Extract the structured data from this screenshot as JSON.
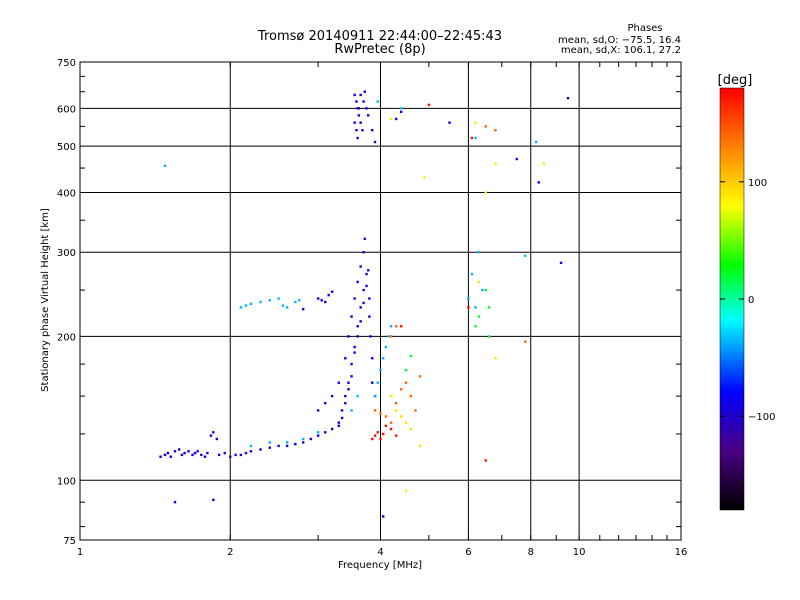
{
  "chart_data": {
    "type": "scatter",
    "title": "Tromsø 20140911 22:44:00–22:45:43",
    "subtitle": "RwPretec (8p)",
    "xlabel": "Frequency [MHz]",
    "ylabel": "Stationary phase Virtual Height [km]",
    "x_scale": "log2",
    "y_scale": "log",
    "xlim": [
      1,
      16
    ],
    "ylim": [
      75,
      750
    ],
    "x_ticks": [
      1,
      2,
      4,
      6,
      8,
      10,
      16
    ],
    "y_ticks": [
      75,
      100,
      200,
      300,
      400,
      500,
      600,
      750
    ],
    "grid": true,
    "annotation": {
      "heading": "Phases",
      "line1": "mean, sd,O: −75.5, 16.4",
      "line2": "mean, sd,X: 106.1, 27.2"
    },
    "colorbar": {
      "label": "[deg]",
      "ticks": [
        100,
        0,
        -100
      ],
      "range": [
        -180,
        180
      ],
      "colors": [
        "#000000",
        "#4b0082",
        "#0000ff",
        "#00ffff",
        "#00ff00",
        "#ffff00",
        "#ff8000",
        "#ff0000"
      ]
    },
    "series": [
      {
        "comment_color": "blue",
        "phase": -100,
        "points": [
          [
            1.45,
            112
          ],
          [
            1.48,
            113
          ],
          [
            1.5,
            114
          ],
          [
            1.52,
            112
          ],
          [
            1.55,
            115
          ],
          [
            1.58,
            116
          ],
          [
            1.6,
            113
          ],
          [
            1.62,
            114
          ],
          [
            1.65,
            115
          ],
          [
            1.68,
            113
          ],
          [
            1.7,
            114
          ],
          [
            1.72,
            115
          ],
          [
            1.75,
            113
          ],
          [
            1.78,
            112
          ],
          [
            1.8,
            114
          ],
          [
            1.83,
            124
          ],
          [
            1.85,
            126
          ],
          [
            1.88,
            122
          ],
          [
            1.9,
            113
          ],
          [
            1.95,
            114
          ],
          [
            2.0,
            112
          ],
          [
            2.05,
            113
          ],
          [
            2.1,
            113
          ],
          [
            2.15,
            114
          ],
          [
            2.2,
            115
          ],
          [
            2.3,
            116
          ],
          [
            2.4,
            117
          ],
          [
            2.5,
            118
          ],
          [
            2.6,
            118
          ],
          [
            2.7,
            119
          ],
          [
            2.8,
            120
          ],
          [
            2.9,
            122
          ],
          [
            3.0,
            124
          ],
          [
            3.1,
            126
          ],
          [
            3.2,
            128
          ],
          [
            3.3,
            132
          ],
          [
            3.35,
            140
          ],
          [
            3.4,
            150
          ],
          [
            3.45,
            160
          ],
          [
            3.5,
            175
          ],
          [
            3.55,
            190
          ],
          [
            3.6,
            210
          ],
          [
            3.65,
            230
          ],
          [
            3.7,
            250
          ],
          [
            3.75,
            270
          ],
          [
            3.4,
            180
          ],
          [
            3.45,
            200
          ],
          [
            3.5,
            220
          ],
          [
            3.55,
            240
          ],
          [
            3.6,
            260
          ],
          [
            3.65,
            280
          ],
          [
            3.7,
            300
          ],
          [
            3.72,
            320
          ],
          [
            3.3,
            130
          ],
          [
            3.35,
            135
          ],
          [
            3.4,
            145
          ],
          [
            3.45,
            155
          ],
          [
            3.5,
            165
          ],
          [
            3.55,
            185
          ],
          [
            3.6,
            200
          ],
          [
            3.65,
            215
          ],
          [
            3.7,
            235
          ],
          [
            3.75,
            255
          ],
          [
            3.78,
            275
          ],
          [
            3.8,
            240
          ],
          [
            3.8,
            220
          ],
          [
            3.82,
            200
          ],
          [
            3.85,
            180
          ],
          [
            3.85,
            160
          ],
          [
            3.9,
            150
          ],
          [
            3.0,
            240
          ],
          [
            3.05,
            238
          ],
          [
            3.1,
            236
          ],
          [
            3.15,
            244
          ],
          [
            3.2,
            248
          ],
          [
            2.8,
            228
          ],
          [
            3.3,
            160
          ],
          [
            3.2,
            150
          ],
          [
            3.1,
            145
          ],
          [
            3.0,
            140
          ],
          [
            1.55,
            90
          ],
          [
            1.85,
            91
          ],
          [
            4.05,
            84
          ],
          [
            3.55,
            640
          ],
          [
            3.58,
            620
          ],
          [
            3.6,
            600
          ],
          [
            3.62,
            580
          ],
          [
            3.65,
            560
          ],
          [
            3.68,
            540
          ],
          [
            3.7,
            620
          ],
          [
            3.72,
            650
          ],
          [
            3.75,
            600
          ],
          [
            3.78,
            580
          ],
          [
            3.55,
            560
          ],
          [
            3.58,
            540
          ],
          [
            3.6,
            520
          ],
          [
            3.62,
            600
          ],
          [
            3.65,
            640
          ],
          [
            3.85,
            540
          ],
          [
            3.9,
            510
          ],
          [
            4.3,
            570
          ],
          [
            4.4,
            590
          ],
          [
            5.5,
            560
          ],
          [
            7.5,
            470
          ],
          [
            8.3,
            420
          ],
          [
            9.2,
            285
          ],
          [
            9.5,
            630
          ]
        ]
      },
      {
        "comment_color": "cyan",
        "phase": -40,
        "points": [
          [
            2.1,
            230
          ],
          [
            2.15,
            232
          ],
          [
            2.2,
            234
          ],
          [
            2.3,
            236
          ],
          [
            2.4,
            238
          ],
          [
            2.5,
            240
          ],
          [
            2.55,
            232
          ],
          [
            2.6,
            230
          ],
          [
            2.7,
            236
          ],
          [
            2.75,
            238
          ],
          [
            1.48,
            455
          ],
          [
            3.9,
            150
          ],
          [
            3.95,
            160
          ],
          [
            4.0,
            170
          ],
          [
            4.05,
            180
          ],
          [
            4.1,
            190
          ],
          [
            4.15,
            200
          ],
          [
            4.2,
            210
          ],
          [
            3.5,
            140
          ],
          [
            3.6,
            150
          ],
          [
            2.2,
            118
          ],
          [
            2.4,
            120
          ],
          [
            2.6,
            120
          ],
          [
            2.8,
            122
          ],
          [
            3.0,
            126
          ],
          [
            6.1,
            270
          ],
          [
            6.2,
            230
          ],
          [
            6.3,
            300
          ],
          [
            7.8,
            295
          ],
          [
            8.2,
            510
          ],
          [
            6.0,
            240
          ],
          [
            6.2,
            520
          ],
          [
            4.4,
            600
          ],
          [
            3.95,
            620
          ],
          [
            6.4,
            250
          ]
        ]
      },
      {
        "comment_color": "green",
        "phase": 20,
        "points": [
          [
            4.5,
            170
          ],
          [
            6.6,
            230
          ],
          [
            6.5,
            250
          ],
          [
            6.2,
            210
          ],
          [
            6.6,
            200
          ],
          [
            4.6,
            182
          ],
          [
            6.3,
            220
          ]
        ]
      },
      {
        "comment_color": "yellow",
        "phase": 90,
        "points": [
          [
            4.2,
            150
          ],
          [
            4.3,
            140
          ],
          [
            4.4,
            136
          ],
          [
            4.5,
            132
          ],
          [
            4.6,
            128
          ],
          [
            4.8,
            118
          ],
          [
            4.9,
            430
          ],
          [
            6.5,
            400
          ],
          [
            6.8,
            460
          ],
          [
            8.5,
            460
          ],
          [
            4.5,
            95
          ],
          [
            6.3,
            260
          ],
          [
            6.8,
            180
          ],
          [
            4.2,
            570
          ],
          [
            6.2,
            560
          ]
        ]
      },
      {
        "comment_color": "orange",
        "phase": 140,
        "points": [
          [
            3.9,
            140
          ],
          [
            4.0,
            138
          ],
          [
            4.1,
            136
          ],
          [
            4.2,
            132
          ],
          [
            4.3,
            145
          ],
          [
            4.4,
            155
          ],
          [
            4.5,
            160
          ],
          [
            4.6,
            150
          ],
          [
            4.7,
            140
          ],
          [
            4.8,
            165
          ],
          [
            7.8,
            195
          ],
          [
            6.5,
            550
          ],
          [
            6.8,
            540
          ],
          [
            4.2,
            200
          ],
          [
            4.3,
            210
          ]
        ]
      },
      {
        "comment_color": "red",
        "phase": 175,
        "points": [
          [
            3.85,
            122
          ],
          [
            3.9,
            124
          ],
          [
            3.95,
            126
          ],
          [
            4.0,
            122
          ],
          [
            4.05,
            125
          ],
          [
            4.1,
            130
          ],
          [
            4.2,
            128
          ],
          [
            4.3,
            124
          ],
          [
            5.0,
            610
          ],
          [
            6.0,
            230
          ],
          [
            6.5,
            110
          ],
          [
            4.4,
            210
          ],
          [
            6.1,
            520
          ]
        ]
      }
    ]
  }
}
